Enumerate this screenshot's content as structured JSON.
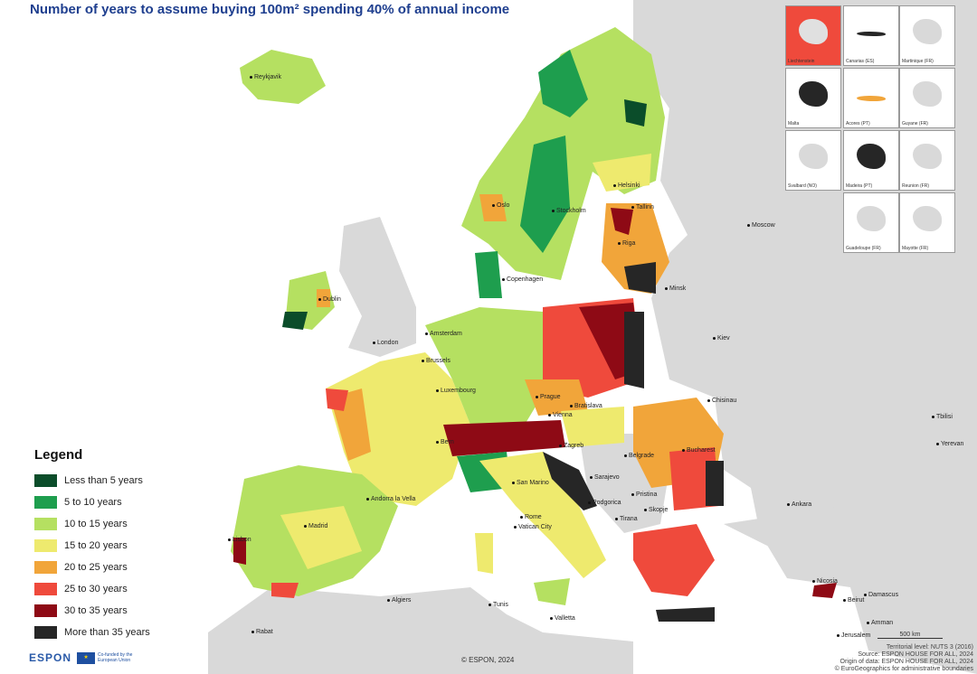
{
  "title": "Number of years to assume buying 100m² spending 40% of annual income",
  "legend": {
    "title": "Legend",
    "items": [
      {
        "label": "Less than 5 years",
        "color": "#0b4d2a"
      },
      {
        "label": "5 to 10 years",
        "color": "#1e9e4e"
      },
      {
        "label": "10 to 15 years",
        "color": "#b5e061"
      },
      {
        "label": "15 to 20 years",
        "color": "#eeea6e"
      },
      {
        "label": "20 to 25 years",
        "color": "#f1a53a"
      },
      {
        "label": "25 to 30 years",
        "color": "#ef4a3c"
      },
      {
        "label": "30 to 35 years",
        "color": "#8e0a15"
      },
      {
        "label": "More than 35 years",
        "color": "#262626"
      }
    ]
  },
  "cities": [
    "Reykjavik",
    "Oslo",
    "Stockholm",
    "Helsinki",
    "Tallinn",
    "Riga",
    "Copenhagen",
    "Dublin",
    "London",
    "Amsterdam",
    "Brussels",
    "Luxembourg",
    "Prague",
    "Vienna",
    "Bratislava",
    "Minsk",
    "Moscow",
    "Kiev",
    "Chisinau",
    "Bucharest",
    "Belgrade",
    "Sarajevo",
    "Podgorica",
    "Pristina",
    "Skopje",
    "Tirana",
    "Zagreb",
    "Bern",
    "San Marino",
    "Rome",
    "Vatican City",
    "Andorra la Vella",
    "Madrid",
    "Lisbon",
    "Algiers",
    "Tunis",
    "Valletta",
    "Rabat",
    "Ankara",
    "Tbilisi",
    "Yerevan",
    "Nicosia",
    "Beirut",
    "Damascus",
    "Amman",
    "Jerusalem"
  ],
  "insets": [
    "Liechtenstein",
    "Canarias (ES)",
    "Martinique (FR)",
    "Malta",
    "Acores (PT)",
    "Guyane (FR)",
    "Svalbard (NO)",
    "Madeira (PT)",
    "Reunion (FR)",
    "Guadeloupe (FR)",
    "Mayotte (FR)"
  ],
  "scale_bar": "500 km",
  "footer": {
    "brand": "ESPON",
    "eu_text": "Co-funded by the European Union",
    "copyright": "© ESPON, 2024",
    "credits": [
      "Territorial level: NUTS 3 (2016)",
      "Source: ESPON HOUSE FOR ALL, 2024",
      "Origin of data: ESPON HOUSE FOR ALL, 2024",
      "© EuroGeographics for administrative boundaries"
    ]
  },
  "colors": {
    "land_outside": "#d9d9d9",
    "sea": "#ffffff",
    "title": "#1f3f8f"
  }
}
